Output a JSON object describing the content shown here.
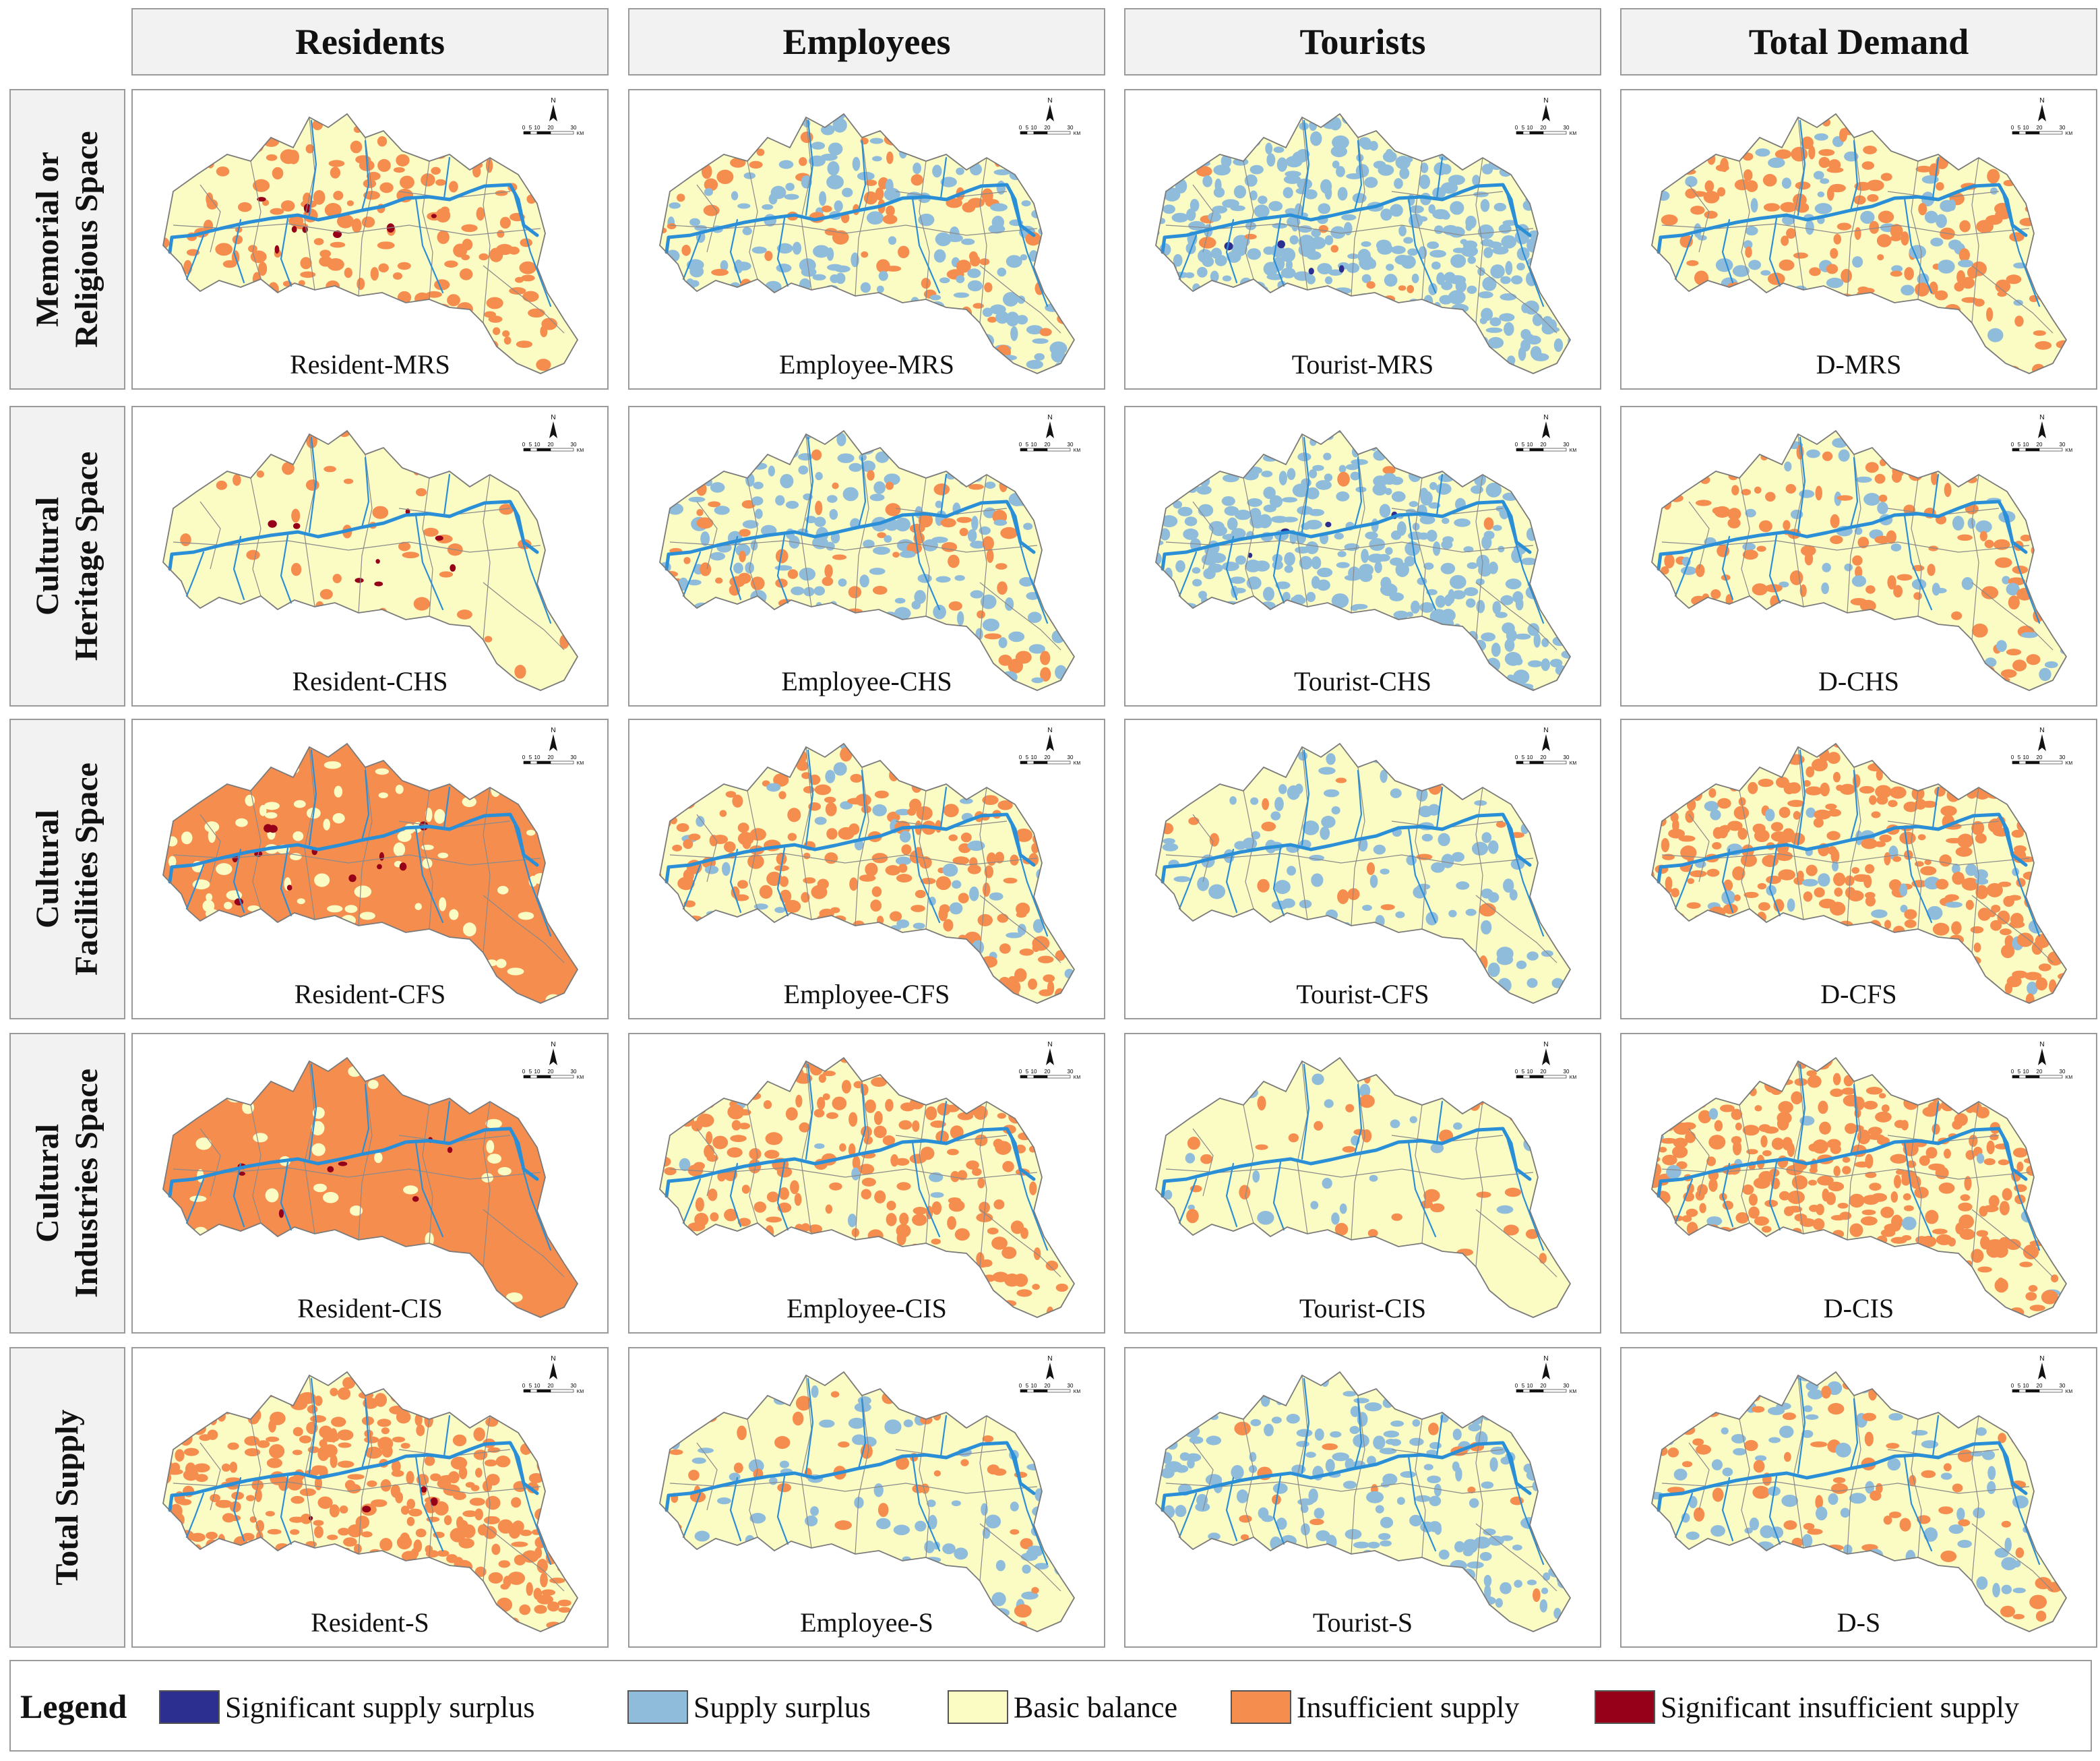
{
  "columns": [
    "Residents",
    "Employees",
    "Tourists",
    "Total Demand"
  ],
  "rows": [
    {
      "line1": "Memorial or",
      "line2": "Religious Space"
    },
    {
      "line1": "Cultural",
      "line2": "Heritage Space"
    },
    {
      "line1": "Cultural",
      "line2": "Facilities Space"
    },
    {
      "line1": "Cultural",
      "line2": "Industries Space"
    },
    {
      "line1": "Total Supply",
      "line2": ""
    }
  ],
  "panels": [
    [
      "Resident-MRS",
      "Employee-MRS",
      "Tourist-MRS",
      "D-MRS"
    ],
    [
      "Resident-CHS",
      "Employee-CHS",
      "Tourist-CHS",
      "D-CHS"
    ],
    [
      "Resident-CFS",
      "Employee-CFS",
      "Tourist-CFS",
      "D-CFS"
    ],
    [
      "Resident-CIS",
      "Employee-CIS",
      "Tourist-CIS",
      "D-CIS"
    ],
    [
      "Resident-S",
      "Employee-S",
      "Tourist-S",
      "D-S"
    ]
  ],
  "panel_mix": [
    [
      {
        "orange": 0.3,
        "blue": 0.0,
        "dblue": 0.0,
        "dred": 0.02
      },
      {
        "orange": 0.12,
        "blue": 0.3,
        "dblue": 0.0,
        "dred": 0.0
      },
      {
        "orange": 0.02,
        "blue": 0.55,
        "dblue": 0.01,
        "dred": 0.0
      },
      {
        "orange": 0.25,
        "blue": 0.12,
        "dblue": 0.0,
        "dred": 0.0
      }
    ],
    [
      {
        "orange": 0.07,
        "blue": 0.0,
        "dblue": 0.0,
        "dred": 0.02
      },
      {
        "orange": 0.15,
        "blue": 0.25,
        "dblue": 0.0,
        "dred": 0.0
      },
      {
        "orange": 0.01,
        "blue": 0.55,
        "dblue": 0.01,
        "dred": 0.0
      },
      {
        "orange": 0.2,
        "blue": 0.1,
        "dblue": 0.0,
        "dred": 0.0
      }
    ],
    [
      {
        "orange": 0.88,
        "blue": 0.0,
        "dblue": 0.0,
        "dred": 0.03
      },
      {
        "orange": 0.3,
        "blue": 0.08,
        "dblue": 0.0,
        "dred": 0.0
      },
      {
        "orange": 0.04,
        "blue": 0.18,
        "dblue": 0.0,
        "dred": 0.0
      },
      {
        "orange": 0.5,
        "blue": 0.05,
        "dblue": 0.0,
        "dred": 0.0
      }
    ],
    [
      {
        "orange": 0.94,
        "blue": 0.0,
        "dblue": 0.0,
        "dred": 0.02
      },
      {
        "orange": 0.35,
        "blue": 0.02,
        "dblue": 0.0,
        "dred": 0.0
      },
      {
        "orange": 0.06,
        "blue": 0.04,
        "dblue": 0.0,
        "dred": 0.0
      },
      {
        "orange": 0.55,
        "blue": 0.02,
        "dblue": 0.0,
        "dred": 0.0
      }
    ],
    [
      {
        "orange": 0.55,
        "blue": 0.0,
        "dblue": 0.0,
        "dred": 0.01
      },
      {
        "orange": 0.1,
        "blue": 0.15,
        "dblue": 0.0,
        "dred": 0.0
      },
      {
        "orange": 0.03,
        "blue": 0.3,
        "dblue": 0.0,
        "dred": 0.0
      },
      {
        "orange": 0.15,
        "blue": 0.15,
        "dblue": 0.0,
        "dred": 0.0
      }
    ]
  ],
  "scale_bar": {
    "north": "N",
    "ticks": [
      "0",
      "5",
      "10",
      "20",
      "30"
    ],
    "unit": "KM"
  },
  "legend": {
    "title": "Legend",
    "items": [
      {
        "label": "Significant supply surplus",
        "color": "#2c2f8f"
      },
      {
        "label": "Supply surplus",
        "color": "#8fbcdb"
      },
      {
        "label": "Basic balance",
        "color": "#fbfbc4"
      },
      {
        "label": "Insufficient supply",
        "color": "#f58d4e"
      },
      {
        "label": "Significant insufficient supply",
        "color": "#960018"
      }
    ]
  },
  "colors": {
    "river": "#2a8fd6",
    "boundary": "#8a8a8a",
    "base": "#fbfbc4"
  }
}
